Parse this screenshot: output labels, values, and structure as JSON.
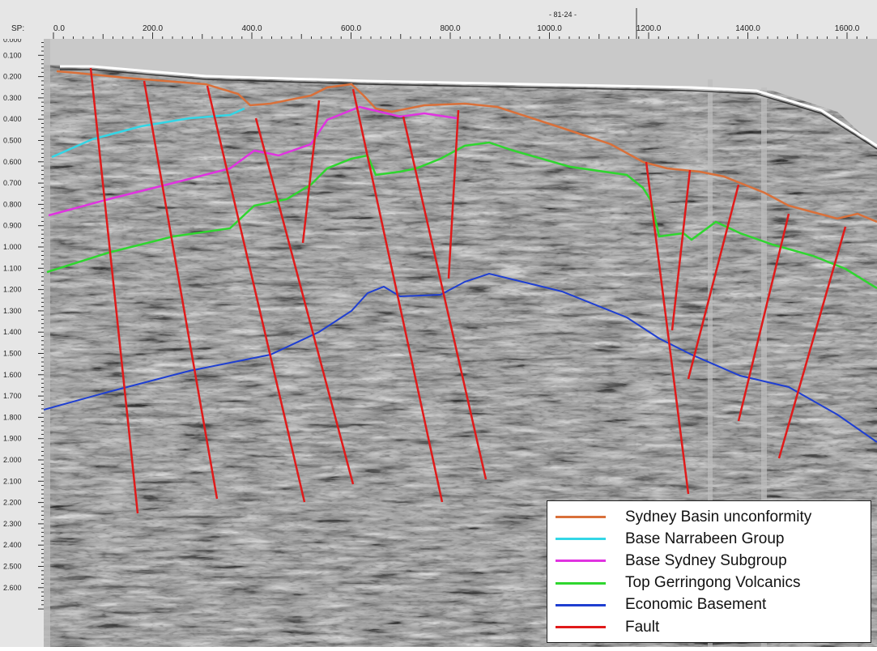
{
  "top_axis": {
    "prefix": "SP:",
    "labels": [
      "0.0",
      "200.0",
      "400.0",
      "600.0",
      "800.0",
      "1000.0",
      "1200.0",
      "1400.0",
      "1600.0"
    ],
    "line_id": "- 81-24 -"
  },
  "left_axis": {
    "labels": [
      "0.000",
      "0.100",
      "0.200",
      "0.300",
      "0.400",
      "0.500",
      "0.600",
      "0.700",
      "0.800",
      "0.900",
      "1.000",
      "1.100",
      "1.200",
      "1.300",
      "1.400",
      "1.500",
      "1.600",
      "1.700",
      "1.800",
      "1.900",
      "2.000",
      "2.100",
      "2.200",
      "2.300",
      "2.400",
      "2.500",
      "2.600"
    ]
  },
  "legend": {
    "items": [
      {
        "label": "Sydney Basin unconformity",
        "color": "#d9703a"
      },
      {
        "label": "Base Narrabeen Group",
        "color": "#33d6e6"
      },
      {
        "label": "Base Sydney Subgroup",
        "color": "#e033e0"
      },
      {
        "label": "Top Gerringong Volcanics",
        "color": "#2fd62f"
      },
      {
        "label": "Economic Basement",
        "color": "#1f3fd1"
      },
      {
        "label": "Fault",
        "color": "#e01a1a"
      }
    ]
  },
  "colors": {
    "seismic_base": "#9c9c9c",
    "sea_floor": "#ffffff"
  }
}
